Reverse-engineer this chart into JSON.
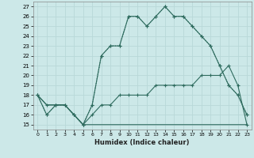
{
  "xlabel": "Humidex (Indice chaleur)",
  "ylabel": "",
  "bg_color": "#cce8e8",
  "grid_color": "#b0d4d4",
  "line_color": "#2e6b5e",
  "xlim": [
    -0.5,
    23.5
  ],
  "ylim": [
    14.5,
    27.5
  ],
  "xticks": [
    0,
    1,
    2,
    3,
    4,
    5,
    6,
    7,
    8,
    9,
    10,
    11,
    12,
    13,
    14,
    15,
    16,
    17,
    18,
    19,
    20,
    21,
    22,
    23
  ],
  "yticks": [
    15,
    16,
    17,
    18,
    19,
    20,
    21,
    22,
    23,
    24,
    25,
    26,
    27
  ],
  "line1_x": [
    0,
    1,
    2,
    3,
    4,
    5,
    6,
    7,
    8,
    9,
    10,
    11,
    12,
    13,
    14,
    15,
    16,
    17,
    18,
    19,
    20,
    21,
    22,
    23
  ],
  "line1_y": [
    18,
    16,
    17,
    17,
    16,
    15,
    17,
    22,
    23,
    23,
    26,
    26,
    25,
    26,
    27,
    26,
    26,
    25,
    24,
    23,
    21,
    19,
    18,
    16
  ],
  "line2_x": [
    0,
    1,
    2,
    3,
    4,
    5,
    6,
    7,
    8,
    9,
    10,
    11,
    12,
    13,
    14,
    15,
    16,
    17,
    18,
    19,
    20,
    21,
    22,
    23
  ],
  "line2_y": [
    18,
    16,
    17,
    17,
    16,
    15,
    17,
    22,
    23,
    23,
    26,
    26,
    25,
    26,
    27,
    26,
    26,
    25,
    24,
    23,
    21,
    19,
    18,
    16
  ],
  "line3_x": [
    0,
    1,
    2,
    3,
    4,
    5,
    6,
    7,
    8,
    9,
    10,
    11,
    12,
    13,
    14,
    15,
    16,
    17,
    18,
    19,
    20,
    21,
    22,
    23
  ],
  "line3_y": [
    18,
    17,
    17,
    17,
    16,
    15,
    16,
    17,
    17,
    18,
    18,
    18,
    18,
    19,
    19,
    19,
    19,
    19,
    20,
    20,
    20,
    21,
    19,
    15
  ],
  "line4_x": [
    0,
    1,
    2,
    3,
    4,
    5,
    6,
    7,
    8,
    9,
    10,
    11,
    12,
    13,
    14,
    15,
    16,
    17,
    18,
    19,
    20,
    21,
    22,
    23
  ],
  "line4_y": [
    18,
    17,
    17,
    17,
    16,
    15,
    15,
    15,
    15,
    15,
    15,
    15,
    15,
    15,
    15,
    15,
    15,
    15,
    15,
    15,
    15,
    15,
    15,
    15
  ]
}
